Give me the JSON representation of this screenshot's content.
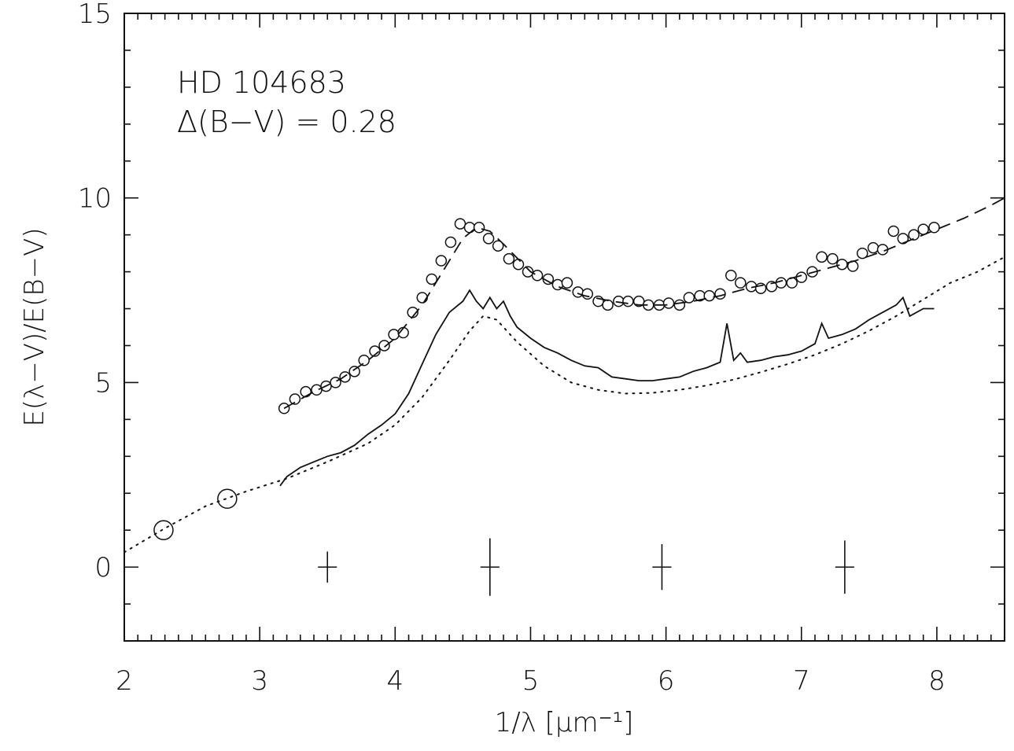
{
  "chart_data": {
    "type": "line",
    "title": "",
    "xlabel": "1/λ [μm⁻¹]",
    "ylabel": "E(λ−V)/E(B−V)",
    "xlim": [
      2,
      8.5
    ],
    "ylim": [
      -2,
      15
    ],
    "x_ticks": [
      "2",
      "3",
      "4",
      "5",
      "6",
      "7",
      "8"
    ],
    "y_ticks": [
      "0",
      "5",
      "10",
      "15"
    ],
    "grid": false,
    "legend": "none",
    "annotations": [
      "HD 104683",
      "Δ(B−V) = 0.28"
    ],
    "series": [
      {
        "style": "circles",
        "x": [
          3.18,
          3.26,
          3.34,
          3.42,
          3.49,
          3.56,
          3.63,
          3.7,
          3.77,
          3.85,
          3.92,
          3.99,
          4.06,
          4.13,
          4.2,
          4.27,
          4.34,
          4.41,
          4.48,
          4.55,
          4.62,
          4.69,
          4.76,
          4.84,
          4.91,
          4.98,
          5.05,
          5.13,
          5.2,
          5.27,
          5.35,
          5.42,
          5.5,
          5.57,
          5.65,
          5.72,
          5.8,
          5.87,
          5.95,
          6.02,
          6.1,
          6.17,
          6.25,
          6.32,
          6.4,
          6.48,
          6.55,
          6.63,
          6.7,
          6.78,
          6.85,
          6.93,
          7.0,
          7.08,
          7.15,
          7.23,
          7.3,
          7.38,
          7.45,
          7.53,
          7.6,
          7.68,
          7.75,
          7.83,
          7.9,
          7.98
        ],
        "y": [
          4.3,
          4.55,
          4.75,
          4.8,
          4.9,
          5.0,
          5.15,
          5.3,
          5.6,
          5.85,
          6.0,
          6.3,
          6.35,
          6.9,
          7.3,
          7.8,
          8.3,
          8.8,
          9.3,
          9.2,
          9.2,
          8.9,
          8.7,
          8.35,
          8.2,
          8.0,
          7.9,
          7.8,
          7.65,
          7.7,
          7.45,
          7.4,
          7.2,
          7.1,
          7.2,
          7.2,
          7.2,
          7.1,
          7.1,
          7.15,
          7.1,
          7.3,
          7.35,
          7.35,
          7.4,
          7.9,
          7.7,
          7.6,
          7.55,
          7.6,
          7.7,
          7.7,
          7.85,
          8.0,
          8.4,
          8.35,
          8.2,
          8.15,
          8.5,
          8.65,
          8.6,
          9.1,
          8.9,
          9.0,
          9.15,
          9.2
        ]
      },
      {
        "style": "dashed-fit",
        "x": [
          3.18,
          3.4,
          3.6,
          3.8,
          4.0,
          4.2,
          4.35,
          4.5,
          4.6,
          4.7,
          4.8,
          5.0,
          5.2,
          5.4,
          5.6,
          5.8,
          6.0,
          6.2,
          6.4,
          6.6,
          6.8,
          7.0,
          7.2,
          7.4,
          7.6,
          7.8,
          8.0,
          8.2,
          8.4,
          8.5
        ],
        "y": [
          4.3,
          4.75,
          5.1,
          5.6,
          6.2,
          7.1,
          8.0,
          8.9,
          9.2,
          9.1,
          8.75,
          8.0,
          7.6,
          7.35,
          7.2,
          7.1,
          7.1,
          7.2,
          7.35,
          7.55,
          7.7,
          7.9,
          8.1,
          8.3,
          8.55,
          8.85,
          9.15,
          9.45,
          9.8,
          10.0
        ]
      },
      {
        "style": "solid-spectrum",
        "x": [
          3.15,
          3.2,
          3.3,
          3.4,
          3.5,
          3.6,
          3.7,
          3.8,
          3.9,
          4.0,
          4.1,
          4.2,
          4.3,
          4.4,
          4.5,
          4.55,
          4.6,
          4.65,
          4.7,
          4.75,
          4.8,
          4.85,
          4.9,
          5.0,
          5.1,
          5.2,
          5.3,
          5.4,
          5.5,
          5.6,
          5.7,
          5.8,
          5.9,
          6.0,
          6.1,
          6.2,
          6.3,
          6.4,
          6.45,
          6.5,
          6.55,
          6.6,
          6.7,
          6.8,
          6.9,
          7.0,
          7.1,
          7.15,
          7.2,
          7.3,
          7.4,
          7.5,
          7.6,
          7.7,
          7.75,
          7.8,
          7.9,
          7.98
        ],
        "y": [
          2.2,
          2.45,
          2.7,
          2.85,
          3.0,
          3.1,
          3.3,
          3.6,
          3.85,
          4.15,
          4.7,
          5.5,
          6.3,
          6.9,
          7.2,
          7.5,
          7.2,
          7.0,
          7.3,
          7.0,
          7.2,
          6.8,
          6.5,
          6.2,
          5.95,
          5.8,
          5.6,
          5.45,
          5.4,
          5.15,
          5.1,
          5.05,
          5.05,
          5.1,
          5.15,
          5.3,
          5.4,
          5.55,
          6.6,
          5.6,
          5.8,
          5.55,
          5.6,
          5.7,
          5.75,
          5.85,
          6.05,
          6.6,
          6.2,
          6.3,
          6.45,
          6.7,
          6.9,
          7.1,
          7.3,
          6.8,
          7.0,
          7.0
        ]
      },
      {
        "style": "dotted-fit",
        "x": [
          2.0,
          2.3,
          2.6,
          2.9,
          3.2,
          3.5,
          3.8,
          4.0,
          4.2,
          4.4,
          4.55,
          4.65,
          4.75,
          4.9,
          5.1,
          5.3,
          5.5,
          5.7,
          5.9,
          6.1,
          6.3,
          6.5,
          6.7,
          6.9,
          7.1,
          7.3,
          7.5,
          7.7,
          7.9,
          8.1,
          8.3,
          8.5
        ],
        "y": [
          0.4,
          1.05,
          1.65,
          2.05,
          2.4,
          2.85,
          3.35,
          3.85,
          4.6,
          5.6,
          6.4,
          6.8,
          6.7,
          6.1,
          5.45,
          5.0,
          4.8,
          4.7,
          4.72,
          4.8,
          4.92,
          5.08,
          5.28,
          5.5,
          5.75,
          6.05,
          6.4,
          6.8,
          7.25,
          7.7,
          8.0,
          8.4
        ]
      },
      {
        "style": "large-circles",
        "x": [
          2.29,
          2.76
        ],
        "y": [
          1.0,
          1.85
        ]
      }
    ],
    "error_bars": [
      {
        "x": 3.5,
        "y": 0,
        "yerr": 0.42,
        "xerr": 0.07
      },
      {
        "x": 4.7,
        "y": 0,
        "yerr": 0.78,
        "xerr": 0.07
      },
      {
        "x": 5.97,
        "y": 0,
        "yerr": 0.62,
        "xerr": 0.07
      },
      {
        "x": 7.32,
        "y": 0,
        "yerr": 0.72,
        "xerr": 0.07
      }
    ]
  }
}
